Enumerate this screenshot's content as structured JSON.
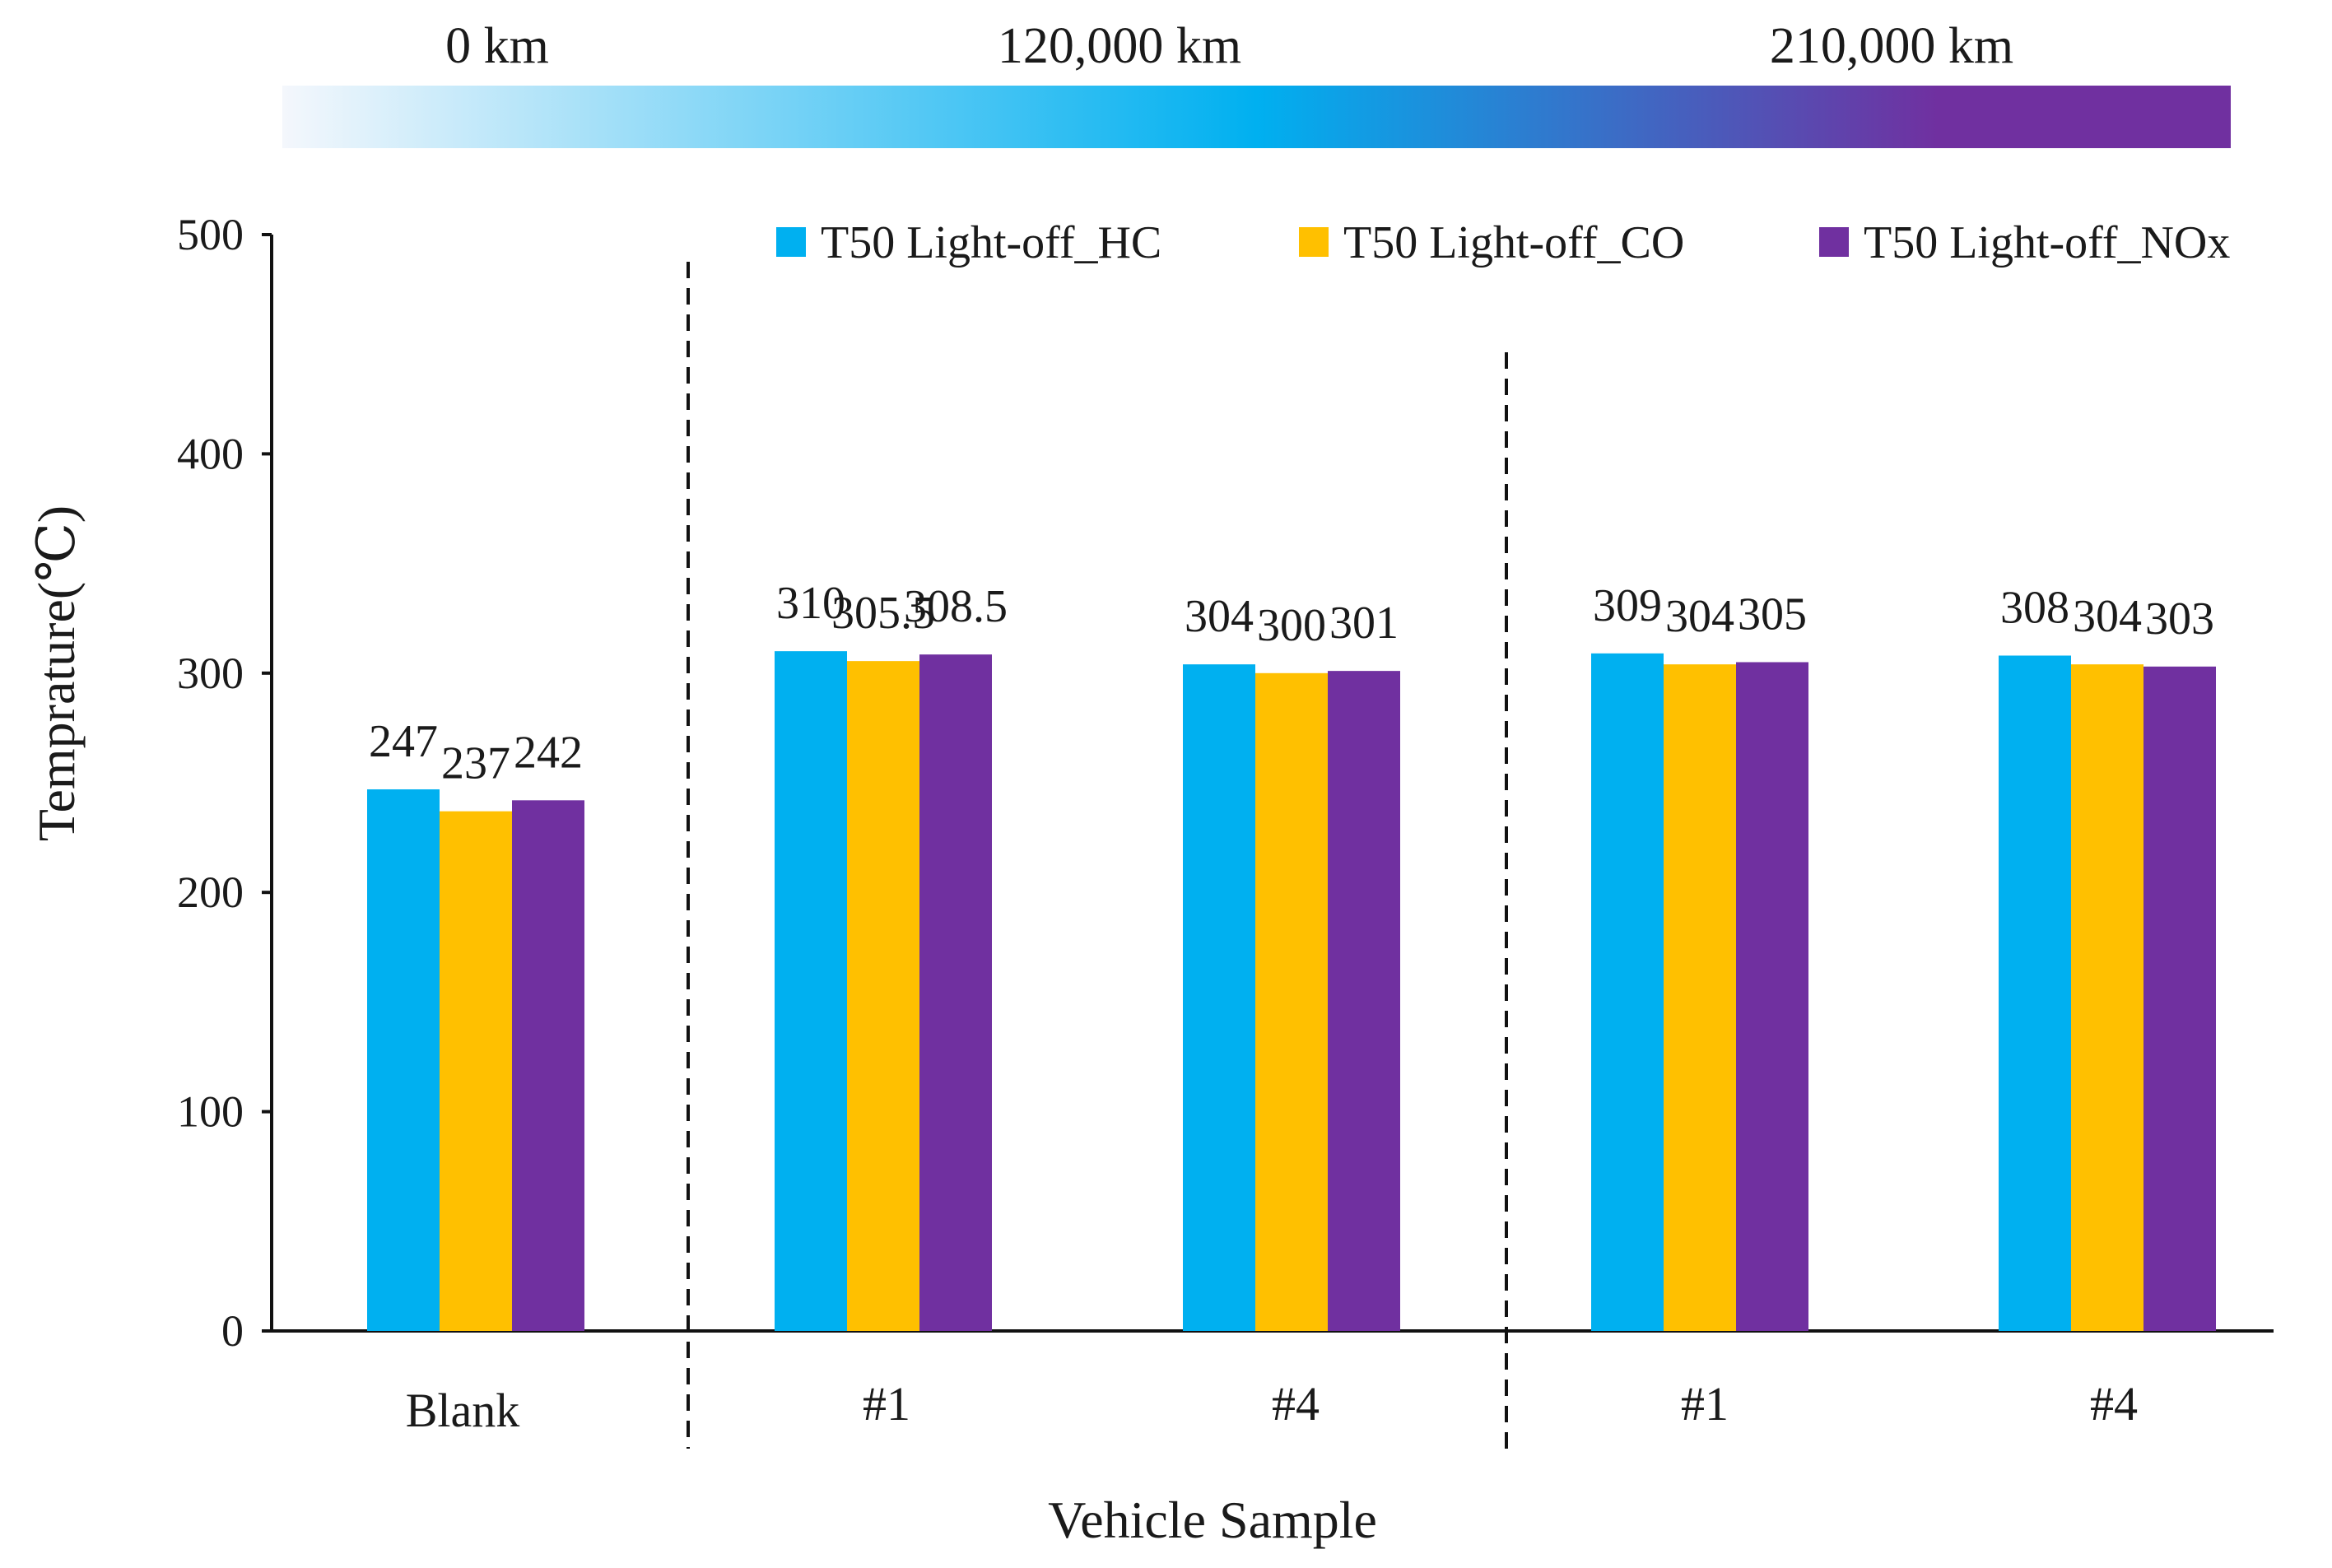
{
  "chart_data": {
    "type": "bar",
    "title": "",
    "xlabel": "Vehicle Sample",
    "ylabel": "Temprature(℃)",
    "ylim": [
      0,
      500
    ],
    "yticks": [
      "0",
      "100",
      "200",
      "300",
      "400",
      "500"
    ],
    "ytick_values": [
      0,
      100,
      200,
      300,
      400,
      500
    ],
    "categories": [
      "Blank",
      "#1",
      "#4",
      "#1",
      "#4"
    ],
    "series": [
      {
        "name": "T50 Light-off_HC",
        "color": "#00b0f0",
        "values": [
          247,
          310,
          304,
          309,
          308
        ],
        "labels": [
          "247",
          "310",
          "304",
          "309",
          "308"
        ]
      },
      {
        "name": "T50 Light-off_CO",
        "color": "#ffc000",
        "values": [
          237,
          305.5,
          300,
          304,
          304
        ],
        "labels": [
          "237",
          "305.5",
          "300",
          "304",
          "304"
        ]
      },
      {
        "name": "T50 Light-off_NOx",
        "color": "#7030a0",
        "values": [
          242,
          308.5,
          301,
          305,
          303
        ],
        "labels": [
          "242",
          "308.5",
          "301",
          "305",
          "303"
        ]
      }
    ],
    "legend_position": "top-right",
    "grid": false,
    "mileage_bar": {
      "labels": [
        "0 km",
        "120,000 km",
        "210,000 km"
      ],
      "colors": [
        "#f4f7fc",
        "#00b0f0",
        "#7030a0"
      ]
    }
  }
}
